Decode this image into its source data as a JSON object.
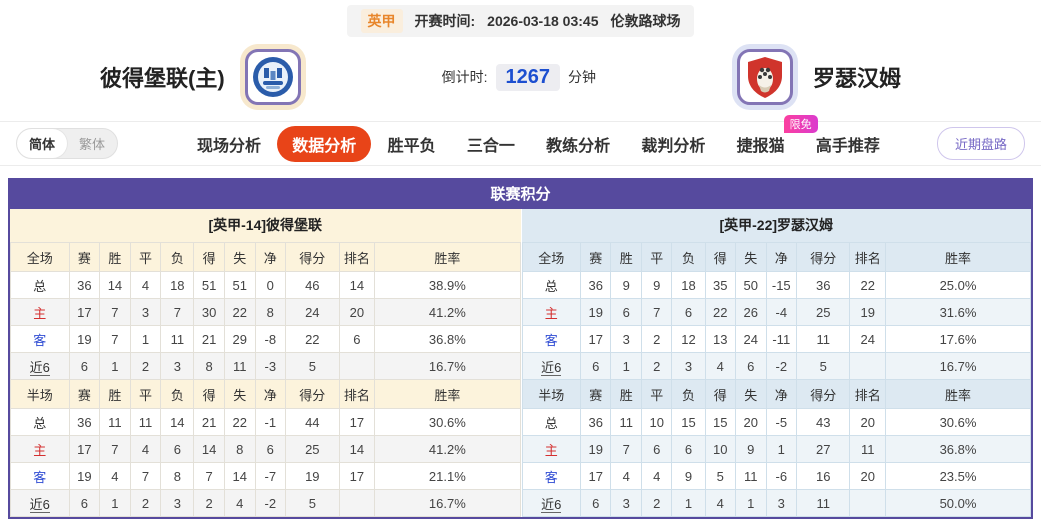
{
  "top_bar": {
    "league": "英甲",
    "kickoff_label": "开赛时间:",
    "kickoff_value": "2026-03-18 03:45",
    "venue": "伦敦路球场"
  },
  "match_header": {
    "home_name": "彼得堡联(主)",
    "away_name": "罗瑟汉姆",
    "home_logo_icon": "peterborough-blue-circle-crest",
    "away_logo_icon": "rotherham-red-shield-crest",
    "countdown_label": "倒计时:",
    "countdown_value": "1267",
    "countdown_unit": "分钟"
  },
  "nav": {
    "lang": [
      {
        "label": "简体",
        "active": true
      },
      {
        "label": "繁体",
        "active": false
      }
    ],
    "tabs": [
      {
        "label": "现场分析",
        "active": false
      },
      {
        "label": "数据分析",
        "active": true
      },
      {
        "label": "胜平负",
        "active": false
      },
      {
        "label": "三合一",
        "active": false
      },
      {
        "label": "教练分析",
        "active": false
      },
      {
        "label": "裁判分析",
        "active": false
      },
      {
        "label": "捷报猫",
        "active": false,
        "badge": "限免"
      },
      {
        "label": "高手推荐",
        "active": false
      }
    ],
    "recent_trend_button": "近期盘路"
  },
  "colors": {
    "accent_purple": "#564a9e",
    "active_tab_red": "#e84418",
    "badge_pink": "#f0309f",
    "league_orange": "#e8862b",
    "countdown_blue": "#1d4fd0",
    "home_row_label_red": "#d43030",
    "away_row_label_blue": "#2f4cd3",
    "home_header_cream": "#fcf3dc",
    "away_header_blue": "#dde9f2"
  },
  "standings": {
    "title": "联赛积分",
    "full_columns": [
      "全场",
      "赛",
      "胜",
      "平",
      "负",
      "得",
      "失",
      "净",
      "得分",
      "排名",
      "胜率"
    ],
    "half_columns": [
      "半场",
      "赛",
      "胜",
      "平",
      "负",
      "得",
      "失",
      "净",
      "得分",
      "排名",
      "胜率"
    ],
    "home": {
      "section_title": "[英甲-14]彼得堡联",
      "full_rows": [
        {
          "label": "总",
          "type": "total",
          "cells": [
            "36",
            "14",
            "4",
            "18",
            "51",
            "51",
            "0",
            "46",
            "14",
            "38.9%"
          ]
        },
        {
          "label": "主",
          "type": "home",
          "cells": [
            "17",
            "7",
            "3",
            "7",
            "30",
            "22",
            "8",
            "24",
            "20",
            "41.2%"
          ]
        },
        {
          "label": "客",
          "type": "away",
          "cells": [
            "19",
            "7",
            "1",
            "11",
            "21",
            "29",
            "-8",
            "22",
            "6",
            "36.8%"
          ]
        },
        {
          "label": "近6",
          "type": "recent",
          "cells": [
            "6",
            "1",
            "2",
            "3",
            "8",
            "11",
            "-3",
            "5",
            "",
            "16.7%"
          ]
        }
      ],
      "half_rows": [
        {
          "label": "总",
          "type": "total",
          "cells": [
            "36",
            "11",
            "11",
            "14",
            "21",
            "22",
            "-1",
            "44",
            "17",
            "30.6%"
          ]
        },
        {
          "label": "主",
          "type": "home",
          "cells": [
            "17",
            "7",
            "4",
            "6",
            "14",
            "8",
            "6",
            "25",
            "14",
            "41.2%"
          ]
        },
        {
          "label": "客",
          "type": "away",
          "cells": [
            "19",
            "4",
            "7",
            "8",
            "7",
            "14",
            "-7",
            "19",
            "17",
            "21.1%"
          ]
        },
        {
          "label": "近6",
          "type": "recent",
          "cells": [
            "6",
            "1",
            "2",
            "3",
            "2",
            "4",
            "-2",
            "5",
            "",
            "16.7%"
          ]
        }
      ]
    },
    "away": {
      "section_title": "[英甲-22]罗瑟汉姆",
      "full_rows": [
        {
          "label": "总",
          "type": "total",
          "cells": [
            "36",
            "9",
            "9",
            "18",
            "35",
            "50",
            "-15",
            "36",
            "22",
            "25.0%"
          ]
        },
        {
          "label": "主",
          "type": "home",
          "cells": [
            "19",
            "6",
            "7",
            "6",
            "22",
            "26",
            "-4",
            "25",
            "19",
            "31.6%"
          ]
        },
        {
          "label": "客",
          "type": "away",
          "cells": [
            "17",
            "3",
            "2",
            "12",
            "13",
            "24",
            "-11",
            "11",
            "24",
            "17.6%"
          ]
        },
        {
          "label": "近6",
          "type": "recent",
          "cells": [
            "6",
            "1",
            "2",
            "3",
            "4",
            "6",
            "-2",
            "5",
            "",
            "16.7%"
          ]
        }
      ],
      "half_rows": [
        {
          "label": "总",
          "type": "total",
          "cells": [
            "36",
            "11",
            "10",
            "15",
            "15",
            "20",
            "-5",
            "43",
            "20",
            "30.6%"
          ]
        },
        {
          "label": "主",
          "type": "home",
          "cells": [
            "19",
            "7",
            "6",
            "6",
            "10",
            "9",
            "1",
            "27",
            "11",
            "36.8%"
          ]
        },
        {
          "label": "客",
          "type": "away",
          "cells": [
            "17",
            "4",
            "4",
            "9",
            "5",
            "11",
            "-6",
            "16",
            "20",
            "23.5%"
          ]
        },
        {
          "label": "近6",
          "type": "recent",
          "cells": [
            "6",
            "3",
            "2",
            "1",
            "4",
            "1",
            "3",
            "11",
            "",
            "50.0%"
          ]
        }
      ]
    }
  }
}
